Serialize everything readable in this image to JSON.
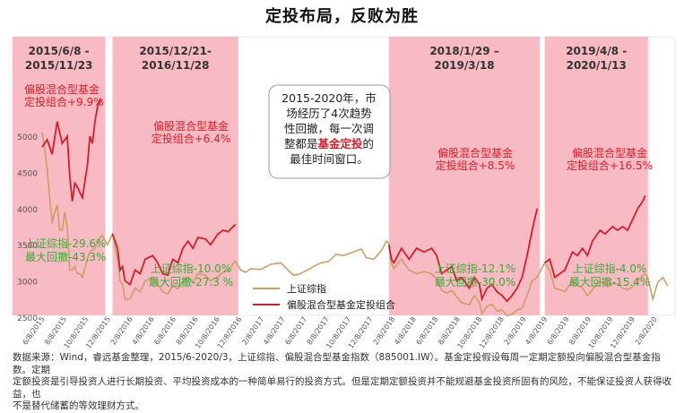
{
  "page": {
    "title": "定投布局，反败为胜"
  },
  "footnote": {
    "line1": "数据来源：Wind，睿远基金整理，2015/6-2020/3，上证综指、偏股混合型基金指数（885001.IW）。基金定投假设每周一定期定额投向偏股混合型基金指数。定期",
    "line2": "定额投资是引导投资人进行长期投资、平均投资成本的一种简单易行的投资方式。但是定期定额投资并不能规避基金投资所固有的风险，不能保证投资人获得收益，也",
    "line3": "不是替代储蓄的等效理财方式。"
  },
  "chart_data": {
    "type": "line",
    "title": "",
    "xlabel": "",
    "ylabel": "",
    "ylim": [
      2400,
      5800
    ],
    "y_ticks": [
      "5000",
      "4500",
      "4000",
      "3500",
      "3000",
      "2500"
    ],
    "x_ticks": [
      "6/8/2015",
      "8/8/2015",
      "10/8/2015",
      "12/8/2015",
      "2/8/2016",
      "4/8/2016",
      "6/8/2016",
      "8/8/2016",
      "10/8/2016",
      "12/8/2016",
      "2/8/2017",
      "4/8/2017",
      "6/8/2017",
      "8/8/2017",
      "10/8/2017",
      "12/8/2017",
      "2/8/2018",
      "4/8/2018",
      "6/8/2018",
      "8/8/2018",
      "10/8/2018",
      "12/8/2018",
      "2/8/2019",
      "4/8/2019",
      "6/8/2019",
      "8/8/2019",
      "10/8/2019",
      "12/8/2019",
      "2/8/2020"
    ],
    "colors": {
      "index": "#c8a067",
      "fund": "#d0202c",
      "shade": "#f7b3bd",
      "label_red": "#d81e2c",
      "label_green": "#3aaa35"
    },
    "legend": {
      "position": "bottom-center",
      "items": [
        "上证综指",
        "偏股混合型基金定投组合"
      ]
    },
    "periods": [
      {
        "header_line1": "2015/6/8 -",
        "header_line2": "2015/11/23",
        "start": "2015-06-08",
        "end": "2015-11-23",
        "fund_line1": "偏股混合型基金",
        "fund_line2": "定投组合+9.9%",
        "index_line1": "上证综指-29.6%",
        "index_line2": "最大回撤-43.3%"
      },
      {
        "header_line1": "2015/12/21-",
        "header_line2": "2016/11/28",
        "start": "2015-12-21",
        "end": "2016-11-28",
        "fund_line1": "偏股混合型基金",
        "fund_line2": "定投组合+6.4%",
        "index_line1": "上证综指-10.0%",
        "index_line2": "最大回撤-27.3 %"
      },
      {
        "header_line1": "2018/1/29 –",
        "header_line2": "2019/3/18",
        "start": "2018-01-29",
        "end": "2019-03-18",
        "fund_line1": "偏股混合型基金",
        "fund_line2": "定投组合+8.5%",
        "index_line1": "上证综指-12.1%",
        "index_line2": "最大回撤-30.0%"
      },
      {
        "header_line1": "2019/4/8 -",
        "header_line2": "2020/1/13",
        "start": "2019-04-08",
        "end": "2020-01-13",
        "fund_line1": "偏股混合型基金",
        "fund_line2": "定投组合+16.5%",
        "index_line1": "上证综指-4.0%",
        "index_line2": "最大回撤-15.4%"
      }
    ],
    "annotation": {
      "line1": "2015-2020年，市",
      "line2": "场经历了4次趋势",
      "line3": "性回撤，每一次调",
      "line4_prefix": "整都是",
      "line4_highlight": "基金定投",
      "line4_suffix": "的",
      "line5": "最佳时间窗口。"
    },
    "series": [
      {
        "name": "上证综指",
        "points": [
          [
            "2015-06-08",
            5050
          ],
          [
            "2015-06-15",
            4850
          ],
          [
            "2015-06-22",
            4550
          ],
          [
            "2015-06-29",
            4150
          ],
          [
            "2015-07-06",
            3800
          ],
          [
            "2015-07-13",
            3950
          ],
          [
            "2015-07-20",
            4050
          ],
          [
            "2015-07-27",
            3700
          ],
          [
            "2015-08-03",
            3700
          ],
          [
            "2015-08-10",
            3950
          ],
          [
            "2015-08-17",
            3750
          ],
          [
            "2015-08-24",
            3150
          ],
          [
            "2015-08-31",
            3150
          ],
          [
            "2015-09-07",
            3200
          ],
          [
            "2015-09-14",
            3100
          ],
          [
            "2015-09-21",
            3100
          ],
          [
            "2015-09-28",
            3050
          ],
          [
            "2015-10-12",
            3300
          ],
          [
            "2015-10-19",
            3400
          ],
          [
            "2015-11-02",
            3450
          ],
          [
            "2015-11-16",
            3600
          ],
          [
            "2015-11-23",
            3630
          ],
          [
            "2015-12-07",
            3500
          ],
          [
            "2015-12-21",
            3650
          ],
          [
            "2016-01-04",
            3300
          ],
          [
            "2016-01-11",
            3000
          ],
          [
            "2016-01-18",
            2950
          ],
          [
            "2016-01-25",
            2750
          ],
          [
            "2016-02-08",
            2750
          ],
          [
            "2016-02-22",
            2900
          ],
          [
            "2016-03-07",
            2850
          ],
          [
            "2016-03-21",
            3000
          ],
          [
            "2016-04-11",
            3050
          ],
          [
            "2016-04-25",
            2950
          ],
          [
            "2016-05-09",
            2850
          ],
          [
            "2016-05-23",
            2820
          ],
          [
            "2016-06-06",
            2930
          ],
          [
            "2016-06-20",
            2890
          ],
          [
            "2016-07-04",
            2990
          ],
          [
            "2016-07-18",
            3050
          ],
          [
            "2016-08-01",
            2980
          ],
          [
            "2016-08-15",
            3100
          ],
          [
            "2016-09-05",
            3080
          ],
          [
            "2016-09-19",
            3000
          ],
          [
            "2016-10-10",
            3060
          ],
          [
            "2016-10-24",
            3120
          ],
          [
            "2016-11-07",
            3140
          ],
          [
            "2016-11-21",
            3240
          ],
          [
            "2016-11-28",
            3270
          ],
          [
            "2016-12-12",
            3150
          ],
          [
            "2016-12-26",
            3120
          ],
          [
            "2017-01-09",
            3170
          ],
          [
            "2017-02-06",
            3160
          ],
          [
            "2017-03-06",
            3230
          ],
          [
            "2017-04-03",
            3250
          ],
          [
            "2017-04-17",
            3180
          ],
          [
            "2017-05-08",
            3080
          ],
          [
            "2017-05-22",
            3090
          ],
          [
            "2017-06-12",
            3140
          ],
          [
            "2017-07-03",
            3200
          ],
          [
            "2017-07-24",
            3250
          ],
          [
            "2017-08-14",
            3270
          ],
          [
            "2017-09-04",
            3370
          ],
          [
            "2017-09-25",
            3350
          ],
          [
            "2017-10-16",
            3390
          ],
          [
            "2017-11-13",
            3440
          ],
          [
            "2017-11-27",
            3320
          ],
          [
            "2017-12-18",
            3300
          ],
          [
            "2018-01-08",
            3420
          ],
          [
            "2018-01-22",
            3550
          ],
          [
            "2018-01-29",
            3520
          ],
          [
            "2018-02-05",
            3250
          ],
          [
            "2018-02-12",
            3170
          ],
          [
            "2018-03-05",
            3300
          ],
          [
            "2018-03-26",
            3150
          ],
          [
            "2018-04-16",
            3100
          ],
          [
            "2018-05-07",
            3130
          ],
          [
            "2018-05-28",
            3100
          ],
          [
            "2018-06-11",
            3020
          ],
          [
            "2018-06-25",
            2870
          ],
          [
            "2018-07-09",
            2830
          ],
          [
            "2018-07-23",
            2870
          ],
          [
            "2018-08-06",
            2780
          ],
          [
            "2018-08-20",
            2700
          ],
          [
            "2018-09-10",
            2670
          ],
          [
            "2018-09-24",
            2800
          ],
          [
            "2018-10-08",
            2700
          ],
          [
            "2018-10-15",
            2550
          ],
          [
            "2018-10-29",
            2650
          ],
          [
            "2018-11-12",
            2680
          ],
          [
            "2018-11-26",
            2580
          ],
          [
            "2018-12-10",
            2600
          ],
          [
            "2018-12-24",
            2520
          ],
          [
            "2019-01-07",
            2540
          ],
          [
            "2019-01-21",
            2600
          ],
          [
            "2019-02-04",
            2620
          ],
          [
            "2019-02-18",
            2800
          ],
          [
            "2019-03-04",
            3000
          ],
          [
            "2019-03-18",
            3050
          ],
          [
            "2019-04-08",
            3250
          ],
          [
            "2019-04-22",
            3150
          ],
          [
            "2019-05-06",
            2900
          ],
          [
            "2019-05-20",
            2880
          ],
          [
            "2019-06-03",
            2850
          ],
          [
            "2019-06-24",
            3000
          ],
          [
            "2019-07-08",
            2950
          ],
          [
            "2019-07-22",
            2900
          ],
          [
            "2019-08-05",
            2800
          ],
          [
            "2019-08-19",
            2880
          ],
          [
            "2019-09-09",
            3000
          ],
          [
            "2019-09-23",
            2950
          ],
          [
            "2019-10-14",
            2960
          ],
          [
            "2019-10-28",
            2960
          ],
          [
            "2019-11-11",
            2900
          ],
          [
            "2019-11-25",
            2880
          ],
          [
            "2019-12-09",
            2920
          ],
          [
            "2019-12-23",
            3000
          ],
          [
            "2020-01-06",
            3080
          ],
          [
            "2020-01-13",
            3100
          ],
          [
            "2020-01-20",
            3050
          ],
          [
            "2020-02-03",
            2750
          ],
          [
            "2020-02-17",
            2980
          ],
          [
            "2020-03-02",
            3050
          ],
          [
            "2020-03-16",
            2930
          ]
        ]
      },
      {
        "name": "偏股混合型基金定投组合",
        "segments": [
          [
            [
              "2015-06-08",
              4850
            ],
            [
              "2015-06-22",
              4950
            ],
            [
              "2015-07-06",
              4750
            ],
            [
              "2015-07-20",
              5200
            ],
            [
              "2015-08-03",
              4900
            ],
            [
              "2015-08-17",
              5000
            ],
            [
              "2015-08-24",
              4450
            ],
            [
              "2015-08-31",
              4100
            ],
            [
              "2015-09-07",
              4350
            ],
            [
              "2015-09-14",
              4300
            ],
            [
              "2015-09-28",
              4150
            ],
            [
              "2015-10-12",
              4600
            ],
            [
              "2015-10-19",
              5000
            ],
            [
              "2015-10-26",
              4900
            ],
            [
              "2015-11-02",
              5200
            ],
            [
              "2015-11-09",
              5400
            ],
            [
              "2015-11-16",
              5500
            ],
            [
              "2015-11-23",
              5500
            ]
          ],
          [
            [
              "2015-12-21",
              3650
            ],
            [
              "2016-01-04",
              3450
            ],
            [
              "2016-01-11",
              3150
            ],
            [
              "2016-01-18",
              3200
            ],
            [
              "2016-01-25",
              3000
            ],
            [
              "2016-02-08",
              2950
            ],
            [
              "2016-02-22",
              3150
            ],
            [
              "2016-03-07",
              3100
            ],
            [
              "2016-03-21",
              3300
            ],
            [
              "2016-04-11",
              3350
            ],
            [
              "2016-04-25",
              3250
            ],
            [
              "2016-05-09",
              3100
            ],
            [
              "2016-05-23",
              3080
            ],
            [
              "2016-06-06",
              3300
            ],
            [
              "2016-06-20",
              3250
            ],
            [
              "2016-07-04",
              3450
            ],
            [
              "2016-07-18",
              3550
            ],
            [
              "2016-08-01",
              3450
            ],
            [
              "2016-08-15",
              3600
            ],
            [
              "2016-09-05",
              3580
            ],
            [
              "2016-09-19",
              3500
            ],
            [
              "2016-10-10",
              3650
            ],
            [
              "2016-10-24",
              3700
            ],
            [
              "2016-11-07",
              3680
            ],
            [
              "2016-11-21",
              3750
            ],
            [
              "2016-11-28",
              3780
            ]
          ],
          [
            [
              "2018-01-29",
              3500
            ],
            [
              "2018-02-05",
              3300
            ],
            [
              "2018-02-12",
              3250
            ],
            [
              "2018-03-05",
              3450
            ],
            [
              "2018-03-26",
              3300
            ],
            [
              "2018-04-16",
              3450
            ],
            [
              "2018-05-07",
              3400
            ],
            [
              "2018-05-28",
              3450
            ],
            [
              "2018-06-11",
              3350
            ],
            [
              "2018-06-25",
              3100
            ],
            [
              "2018-07-09",
              3150
            ],
            [
              "2018-07-23",
              3200
            ],
            [
              "2018-08-06",
              3000
            ],
            [
              "2018-08-20",
              3050
            ],
            [
              "2018-09-10",
              2900
            ],
            [
              "2018-09-24",
              3050
            ],
            [
              "2018-10-08",
              2950
            ],
            [
              "2018-10-15",
              2750
            ],
            [
              "2018-10-29",
              2900
            ],
            [
              "2018-11-12",
              2950
            ],
            [
              "2018-11-26",
              2850
            ],
            [
              "2018-12-10",
              2800
            ],
            [
              "2018-12-24",
              2720
            ],
            [
              "2019-01-07",
              2800
            ],
            [
              "2019-01-21",
              2900
            ],
            [
              "2019-02-04",
              3050
            ],
            [
              "2019-02-18",
              3350
            ],
            [
              "2019-03-04",
              3700
            ],
            [
              "2019-03-18",
              4000
            ]
          ],
          [
            [
              "2019-04-08",
              3250
            ],
            [
              "2019-04-22",
              3300
            ],
            [
              "2019-05-06",
              3050
            ],
            [
              "2019-05-20",
              3100
            ],
            [
              "2019-06-03",
              3150
            ],
            [
              "2019-06-24",
              3400
            ],
            [
              "2019-07-08",
              3350
            ],
            [
              "2019-07-22",
              3450
            ],
            [
              "2019-08-05",
              3350
            ],
            [
              "2019-08-19",
              3550
            ],
            [
              "2019-09-09",
              3700
            ],
            [
              "2019-09-23",
              3650
            ],
            [
              "2019-10-14",
              3750
            ],
            [
              "2019-10-28",
              3700
            ],
            [
              "2019-11-11",
              3750
            ],
            [
              "2019-11-25",
              3700
            ],
            [
              "2019-12-09",
              3850
            ],
            [
              "2019-12-23",
              4000
            ],
            [
              "2020-01-06",
              4100
            ],
            [
              "2020-01-13",
              4180
            ]
          ]
        ]
      }
    ]
  }
}
